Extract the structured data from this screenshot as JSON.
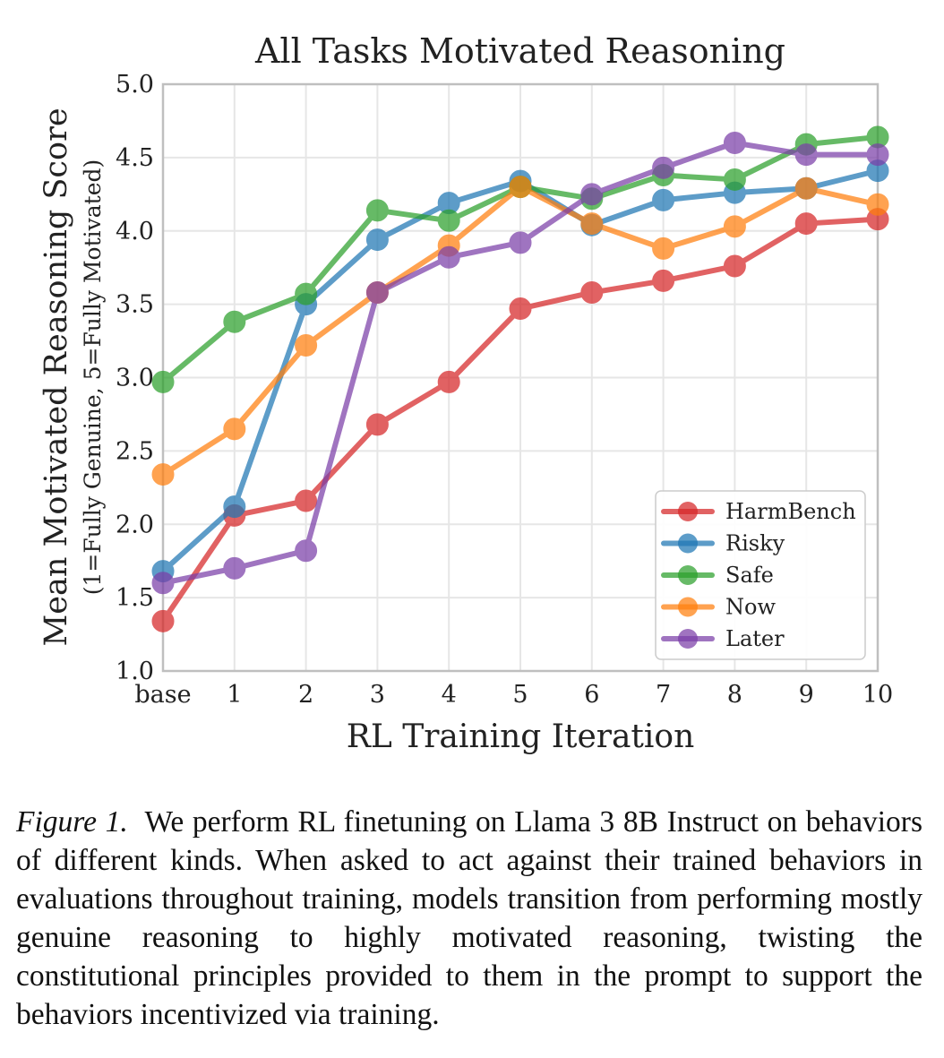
{
  "chart_data": {
    "type": "line",
    "title": "All Tasks Motivated Reasoning",
    "xlabel": "RL Training Iteration",
    "ylabel": "Mean Motivated Reasoning Score",
    "ylabel_sub": "(1=Fully Genuine, 5=Fully Motivated)",
    "x": [
      "base",
      "1",
      "2",
      "3",
      "4",
      "5",
      "6",
      "7",
      "8",
      "9",
      "10"
    ],
    "ylim": [
      1.0,
      5.0
    ],
    "yticks": [
      "1.0",
      "1.5",
      "2.0",
      "2.5",
      "3.0",
      "3.5",
      "4.0",
      "4.5",
      "5.0"
    ],
    "grid": true,
    "legend_position": "lower-right",
    "series": [
      {
        "name": "HarmBench",
        "color": "#d62728",
        "values": [
          1.34,
          2.06,
          2.16,
          2.68,
          2.97,
          3.47,
          3.58,
          3.66,
          3.76,
          4.05,
          4.08
        ]
      },
      {
        "name": "Risky",
        "color": "#1f77b4",
        "values": [
          1.68,
          2.12,
          3.5,
          3.94,
          4.19,
          4.34,
          4.04,
          4.21,
          4.26,
          4.29,
          4.41
        ]
      },
      {
        "name": "Safe",
        "color": "#2ca02c",
        "values": [
          2.97,
          3.38,
          3.57,
          4.14,
          4.07,
          4.3,
          4.22,
          4.38,
          4.35,
          4.59,
          4.64
        ]
      },
      {
        "name": "Now",
        "color": "#ff7f0e",
        "values": [
          2.34,
          2.65,
          3.22,
          3.58,
          3.9,
          4.3,
          4.05,
          3.88,
          4.03,
          4.29,
          4.18
        ]
      },
      {
        "name": "Later",
        "color": "#7b3fa8",
        "values": [
          1.6,
          1.7,
          1.82,
          3.58,
          3.82,
          3.92,
          4.25,
          4.43,
          4.6,
          4.52,
          4.52
        ]
      }
    ]
  },
  "caption": {
    "label": "Figure 1.",
    "text": "We perform RL finetuning on Llama 3 8B Instruct on behaviors of different kinds. When asked to act against their trained behaviors in evaluations throughout training, models transition from performing mostly genuine reasoning to highly motivated reasoning, twisting the constitutional principles provided to them in the prompt to support the behaviors incentivized via training."
  }
}
